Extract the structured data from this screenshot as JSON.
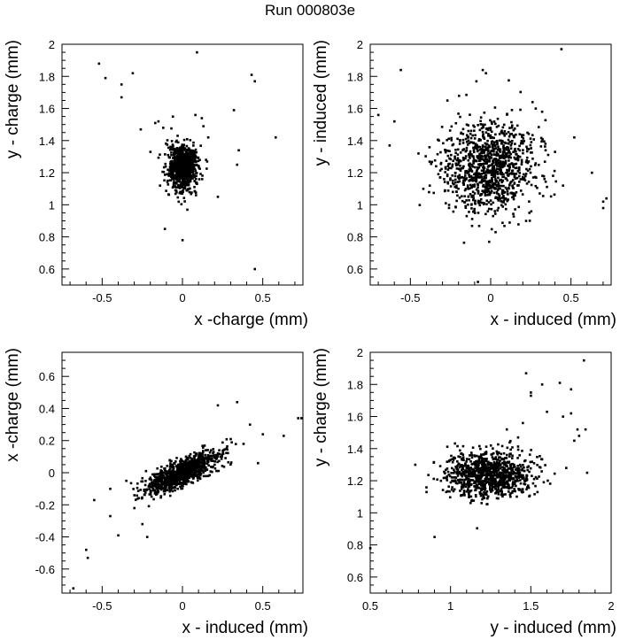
{
  "title": "Run 000803e",
  "chart_data": [
    {
      "type": "scatter",
      "xlabel": "x -charge (mm)",
      "ylabel": "y - charge (mm)",
      "xlim": [
        -0.75,
        0.75
      ],
      "ylim": [
        0.5,
        2.0
      ],
      "xticks": [
        -0.5,
        0,
        0.5
      ],
      "xtick_labels": [
        "-0.5",
        "0",
        "0.5"
      ],
      "yticks": [
        0.6,
        0.8,
        1.0,
        1.2,
        1.4,
        1.6,
        1.8,
        2.0
      ],
      "ytick_labels": [
        "0.6",
        "0.8",
        "1",
        "1.2",
        "1.4",
        "1.6",
        "1.8",
        "2"
      ],
      "grid": false,
      "cluster": {
        "x_center": 0.0,
        "y_center": 1.23,
        "x_spread": 0.045,
        "y_spread": 0.07,
        "n": 900
      },
      "points": [
        [
          -0.52,
          1.88
        ],
        [
          -0.48,
          1.79
        ],
        [
          -0.38,
          1.75
        ],
        [
          -0.31,
          1.82
        ],
        [
          -0.38,
          1.67
        ],
        [
          0.09,
          1.95
        ],
        [
          0.43,
          1.81
        ],
        [
          0.45,
          1.77
        ],
        [
          0.32,
          1.59
        ],
        [
          0.58,
          1.42
        ],
        [
          -0.17,
          1.51
        ],
        [
          -0.15,
          1.52
        ],
        [
          -0.26,
          1.47
        ],
        [
          0.35,
          1.34
        ],
        [
          0.34,
          1.25
        ],
        [
          -0.11,
          0.85
        ],
        [
          0.0,
          0.78
        ],
        [
          0.45,
          0.6
        ],
        [
          -0.06,
          1.55
        ],
        [
          0.08,
          1.56
        ],
        [
          0.13,
          1.49
        ],
        [
          0.16,
          1.42
        ],
        [
          -0.14,
          1.12
        ],
        [
          -0.2,
          1.33
        ],
        [
          0.22,
          1.05
        ],
        [
          0.03,
          0.97
        ],
        [
          -0.12,
          1.48
        ],
        [
          0.12,
          1.54
        ]
      ]
    },
    {
      "type": "scatter",
      "xlabel": "x - induced (mm)",
      "ylabel": "y - induced (mm)",
      "xlim": [
        -0.75,
        0.75
      ],
      "ylim": [
        0.5,
        2.0
      ],
      "xticks": [
        -0.5,
        0,
        0.5
      ],
      "xtick_labels": [
        "-0.5",
        "0",
        "0.5"
      ],
      "yticks": [
        0.6,
        0.8,
        1.0,
        1.2,
        1.4,
        1.6,
        1.8,
        2.0
      ],
      "ytick_labels": [
        "0.6",
        "0.8",
        "1",
        "1.2",
        "1.4",
        "1.6",
        "1.8",
        "2"
      ],
      "grid": false,
      "cluster": {
        "x_center": -0.01,
        "y_center": 1.24,
        "x_spread": 0.14,
        "y_spread": 0.14,
        "n": 1100
      },
      "points": [
        [
          -0.56,
          1.84
        ],
        [
          -0.05,
          1.84
        ],
        [
          -0.03,
          1.82
        ],
        [
          0.44,
          1.97
        ],
        [
          0.72,
          1.04
        ],
        [
          0.7,
          1.02
        ],
        [
          0.7,
          0.98
        ],
        [
          0.63,
          1.2
        ],
        [
          0.52,
          1.42
        ],
        [
          -0.7,
          1.56
        ],
        [
          -0.6,
          1.52
        ],
        [
          -0.63,
          1.37
        ],
        [
          -0.45,
          1.32
        ],
        [
          -0.42,
          1.1
        ],
        [
          -0.38,
          1.12
        ],
        [
          -0.27,
          1.18
        ],
        [
          -0.01,
          0.77
        ],
        [
          0.03,
          0.83
        ],
        [
          0.26,
          1.64
        ],
        [
          0.28,
          1.6
        ],
        [
          0.32,
          1.58
        ],
        [
          -0.27,
          1.65
        ],
        [
          0.22,
          0.9
        ],
        [
          -0.15,
          0.93
        ],
        [
          0.4,
          1.33
        ],
        [
          0.45,
          1.12
        ],
        [
          -0.08,
          0.52
        ]
      ]
    },
    {
      "type": "scatter",
      "xlabel": "x - induced (mm)",
      "ylabel": "x -charge (mm)",
      "xlim": [
        -0.75,
        0.75
      ],
      "ylim": [
        -0.75,
        0.75
      ],
      "xticks": [
        -0.5,
        0,
        0.5
      ],
      "xtick_labels": [
        "-0.5",
        "0",
        "0.5"
      ],
      "yticks": [
        -0.6,
        -0.4,
        -0.2,
        0,
        0.2,
        0.4,
        0.6
      ],
      "ytick_labels": [
        "-0.6",
        "-0.4",
        "-0.2",
        "0",
        "0.2",
        "0.4",
        "0.6"
      ],
      "grid": false,
      "cluster": {
        "x_center": 0.0,
        "y_center": 0.0,
        "x_spread": 0.11,
        "y_spread": 0.04,
        "slope": 0.45,
        "n": 1000
      },
      "points": [
        [
          -0.68,
          -0.72
        ],
        [
          -0.6,
          -0.48
        ],
        [
          -0.59,
          -0.53
        ],
        [
          -0.55,
          -0.17
        ],
        [
          -0.45,
          -0.27
        ],
        [
          -0.4,
          -0.39
        ],
        [
          -0.3,
          -0.22
        ],
        [
          -0.25,
          -0.32
        ],
        [
          -0.22,
          -0.4
        ],
        [
          -0.45,
          -0.1
        ],
        [
          0.22,
          0.42
        ],
        [
          0.34,
          0.44
        ],
        [
          0.5,
          0.24
        ],
        [
          0.63,
          0.23
        ],
        [
          0.72,
          0.34
        ],
        [
          0.74,
          0.34
        ],
        [
          0.42,
          0.3
        ],
        [
          0.47,
          0.06
        ],
        [
          0.3,
          0.21
        ],
        [
          0.38,
          0.18
        ],
        [
          -0.35,
          -0.05
        ],
        [
          -0.3,
          -0.14
        ]
      ]
    },
    {
      "type": "scatter",
      "xlabel": "y - induced (mm)",
      "ylabel": "y - charge (mm)",
      "xlim": [
        0.5,
        2.0
      ],
      "ylim": [
        0.5,
        2.0
      ],
      "xticks": [
        0.5,
        1.0,
        1.5,
        2.0
      ],
      "xtick_labels": [
        "0.5",
        "1",
        "1.5",
        "2"
      ],
      "yticks": [
        0.6,
        0.8,
        1.0,
        1.2,
        1.4,
        1.6,
        1.8,
        2.0
      ],
      "ytick_labels": [
        "0.6",
        "0.8",
        "1",
        "1.2",
        "1.4",
        "1.6",
        "1.8",
        "2"
      ],
      "grid": false,
      "cluster": {
        "x_center": 1.24,
        "y_center": 1.24,
        "x_spread": 0.13,
        "y_spread": 0.07,
        "n": 1000
      },
      "points": [
        [
          0.5,
          0.78
        ],
        [
          0.9,
          0.85
        ],
        [
          1.83,
          1.95
        ],
        [
          1.47,
          1.87
        ],
        [
          1.5,
          1.75
        ],
        [
          1.5,
          1.73
        ],
        [
          1.57,
          1.8
        ],
        [
          1.68,
          1.81
        ],
        [
          1.75,
          1.77
        ],
        [
          1.45,
          1.56
        ],
        [
          1.75,
          1.62
        ],
        [
          1.79,
          1.52
        ],
        [
          1.84,
          1.52
        ],
        [
          1.85,
          1.25
        ],
        [
          1.72,
          1.28
        ],
        [
          1.77,
          1.45
        ],
        [
          0.78,
          1.3
        ],
        [
          0.85,
          1.13
        ],
        [
          1.6,
          1.63
        ],
        [
          1.35,
          1.52
        ],
        [
          1.42,
          1.47
        ],
        [
          1.7,
          1.6
        ],
        [
          1.8,
          1.48
        ]
      ]
    }
  ]
}
